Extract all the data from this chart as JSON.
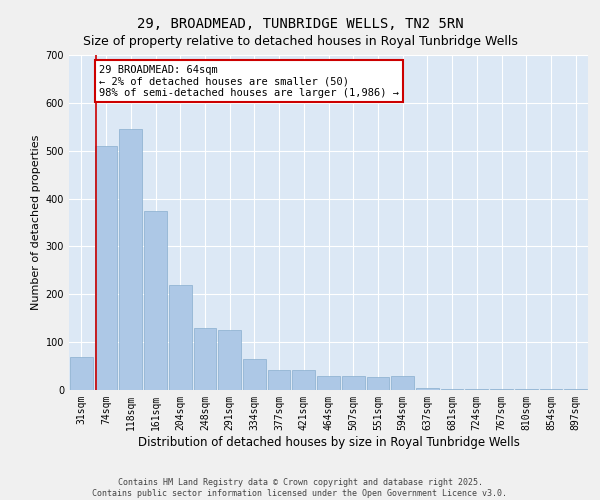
{
  "title": "29, BROADMEAD, TUNBRIDGE WELLS, TN2 5RN",
  "subtitle": "Size of property relative to detached houses in Royal Tunbridge Wells",
  "xlabel": "Distribution of detached houses by size in Royal Tunbridge Wells",
  "ylabel": "Number of detached properties",
  "categories": [
    "31sqm",
    "74sqm",
    "118sqm",
    "161sqm",
    "204sqm",
    "248sqm",
    "291sqm",
    "334sqm",
    "377sqm",
    "421sqm",
    "464sqm",
    "507sqm",
    "551sqm",
    "594sqm",
    "637sqm",
    "681sqm",
    "724sqm",
    "767sqm",
    "810sqm",
    "854sqm",
    "897sqm"
  ],
  "values": [
    70,
    510,
    545,
    375,
    220,
    130,
    125,
    65,
    42,
    42,
    30,
    30,
    28,
    30,
    5,
    3,
    3,
    2,
    2,
    2,
    2
  ],
  "bar_color": "#adc8e6",
  "bar_edge_color": "#88aece",
  "background_color": "#dce8f5",
  "grid_color": "#ffffff",
  "annotation_text": "29 BROADMEAD: 64sqm\n← 2% of detached houses are smaller (50)\n98% of semi-detached houses are larger (1,986) →",
  "annotation_box_facecolor": "#ffffff",
  "annotation_box_edgecolor": "#cc0000",
  "marker_line_color": "#cc0000",
  "ylim": [
    0,
    700
  ],
  "yticks": [
    0,
    100,
    200,
    300,
    400,
    500,
    600,
    700
  ],
  "footer_line1": "Contains HM Land Registry data © Crown copyright and database right 2025.",
  "footer_line2": "Contains public sector information licensed under the Open Government Licence v3.0.",
  "title_fontsize": 10,
  "subtitle_fontsize": 9,
  "xlabel_fontsize": 8.5,
  "ylabel_fontsize": 8,
  "tick_fontsize": 7,
  "annotation_fontsize": 7.5,
  "footer_fontsize": 6
}
